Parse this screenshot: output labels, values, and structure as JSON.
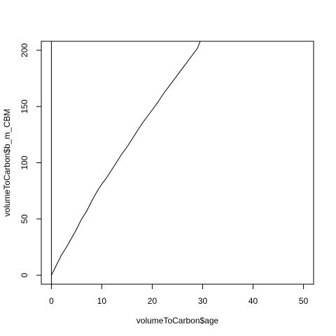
{
  "chart_data": {
    "type": "line",
    "title": "",
    "xlabel": "volumeToCarbon$age",
    "ylabel": "volumeToCarbon$b_m_CBM",
    "xlim": [
      -2,
      52
    ],
    "ylim": [
      -8,
      208
    ],
    "xticks": [
      0,
      10,
      20,
      30,
      40,
      50
    ],
    "yticks": [
      0,
      50,
      100,
      150,
      200
    ],
    "grid": false,
    "legend": "none",
    "vline_x": 0,
    "series": [
      {
        "x": [
          0,
          1,
          2,
          3,
          4,
          5,
          6,
          7,
          8,
          9,
          10,
          11,
          12,
          13,
          14,
          15,
          16,
          17,
          18,
          19,
          20,
          21,
          22,
          23,
          24,
          25,
          26,
          27,
          28,
          29,
          29.5
        ],
        "y": [
          0,
          9,
          18,
          25,
          33,
          41,
          50,
          57,
          66,
          74,
          81,
          87,
          94,
          101,
          108,
          114,
          121,
          128,
          135,
          141,
          147,
          153,
          160,
          166,
          172,
          178,
          184,
          190,
          196,
          202,
          208
        ]
      }
    ]
  }
}
